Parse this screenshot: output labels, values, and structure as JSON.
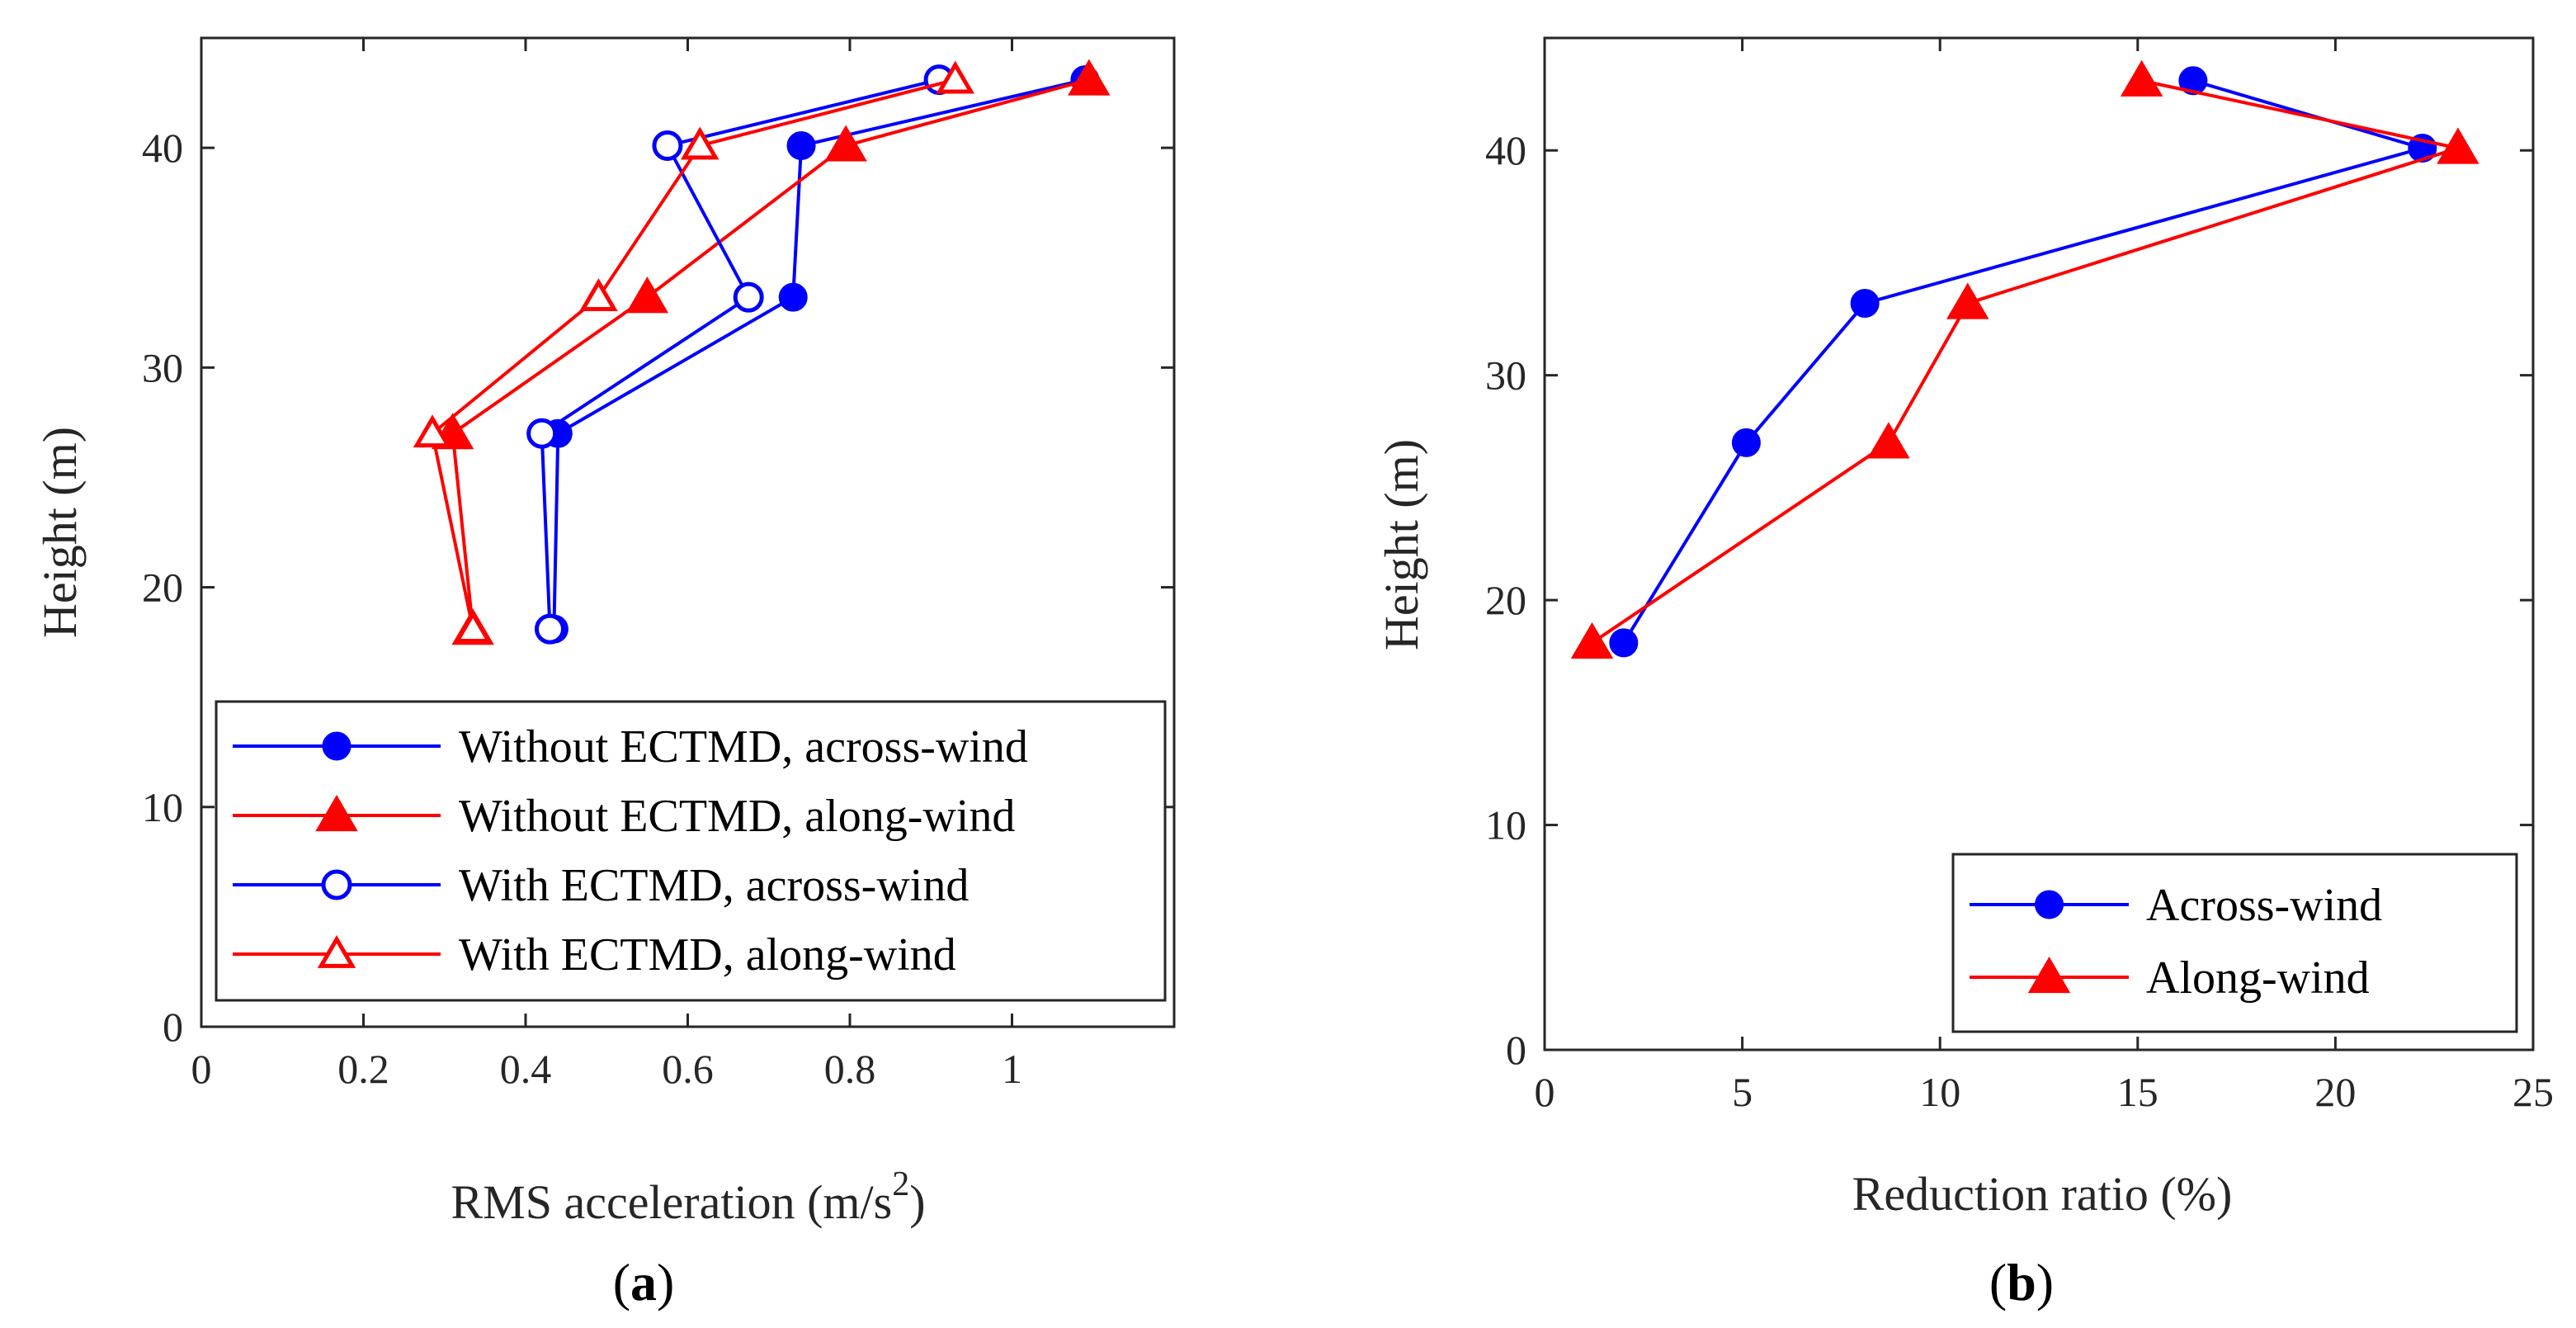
{
  "chart_data": [
    {
      "type": "line",
      "panel": "a",
      "caption": "(a)",
      "caption_letter": "a",
      "xlabel_main": "RMS acceleration (m/s",
      "xlabel_sup": "2",
      "xlabel_end": ")",
      "ylabel": "Height (m)",
      "xlim": [
        0,
        1.2
      ],
      "ylim": [
        0,
        45
      ],
      "xticks": [
        0,
        0.2,
        0.4,
        0.6,
        0.8,
        1
      ],
      "xtick_labels": [
        "0",
        "0.2",
        "0.4",
        "0.6",
        "0.8",
        "1"
      ],
      "yticks": [
        0,
        10,
        20,
        30,
        40
      ],
      "ytick_labels": [
        "0",
        "10",
        "20",
        "30",
        "40"
      ],
      "legend_position": "bottom",
      "series": [
        {
          "name": "Without ECTMD, across-wind",
          "color": "#0000ff",
          "marker": "circle",
          "filled": true,
          "x": [
            0.435,
            0.44,
            0.73,
            0.74,
            1.09
          ],
          "y": [
            18.1,
            27.0,
            33.2,
            40.1,
            43.1
          ]
        },
        {
          "name": "Without ECTMD, along-wind",
          "color": "#ff0000",
          "marker": "triangle",
          "filled": true,
          "x": [
            0.335,
            0.31,
            0.55,
            0.795,
            1.095
          ],
          "y": [
            18.1,
            27.0,
            33.2,
            40.1,
            43.1
          ]
        },
        {
          "name": "With ECTMD, across-wind",
          "color": "#0000ff",
          "marker": "circle",
          "filled": false,
          "x": [
            0.43,
            0.42,
            0.675,
            0.575,
            0.91
          ],
          "y": [
            18.1,
            27.0,
            33.2,
            40.1,
            43.1
          ]
        },
        {
          "name": "With ECTMD, along-wind",
          "color": "#ff0000",
          "marker": "triangle",
          "filled": false,
          "x": [
            0.335,
            0.285,
            0.49,
            0.615,
            0.93
          ],
          "y": [
            18.1,
            27.0,
            33.2,
            40.1,
            43.1
          ]
        }
      ]
    },
    {
      "type": "line",
      "panel": "b",
      "caption": "(b)",
      "caption_letter": "b",
      "xlabel": "Reduction ratio (%)",
      "ylabel": "Height (m)",
      "xlim": [
        0,
        25
      ],
      "ylim": [
        0,
        45
      ],
      "xticks": [
        0,
        5,
        10,
        15,
        20,
        25
      ],
      "xtick_labels": [
        "0",
        "5",
        "10",
        "15",
        "20",
        "25"
      ],
      "yticks": [
        0,
        10,
        20,
        30,
        40
      ],
      "ytick_labels": [
        "0",
        "10",
        "20",
        "30",
        "40"
      ],
      "legend_position": "bottom-right",
      "series": [
        {
          "name": "Across-wind",
          "color": "#0000ff",
          "marker": "circle",
          "filled": true,
          "x": [
            2.0,
            5.1,
            8.1,
            22.2,
            16.4
          ],
          "y": [
            18.1,
            27.0,
            33.2,
            40.1,
            43.1
          ]
        },
        {
          "name": "Along-wind",
          "color": "#ff0000",
          "marker": "triangle",
          "filled": true,
          "x": [
            1.2,
            8.7,
            10.7,
            23.1,
            15.1
          ],
          "y": [
            18.1,
            27.0,
            33.2,
            40.1,
            43.1
          ]
        }
      ]
    }
  ]
}
